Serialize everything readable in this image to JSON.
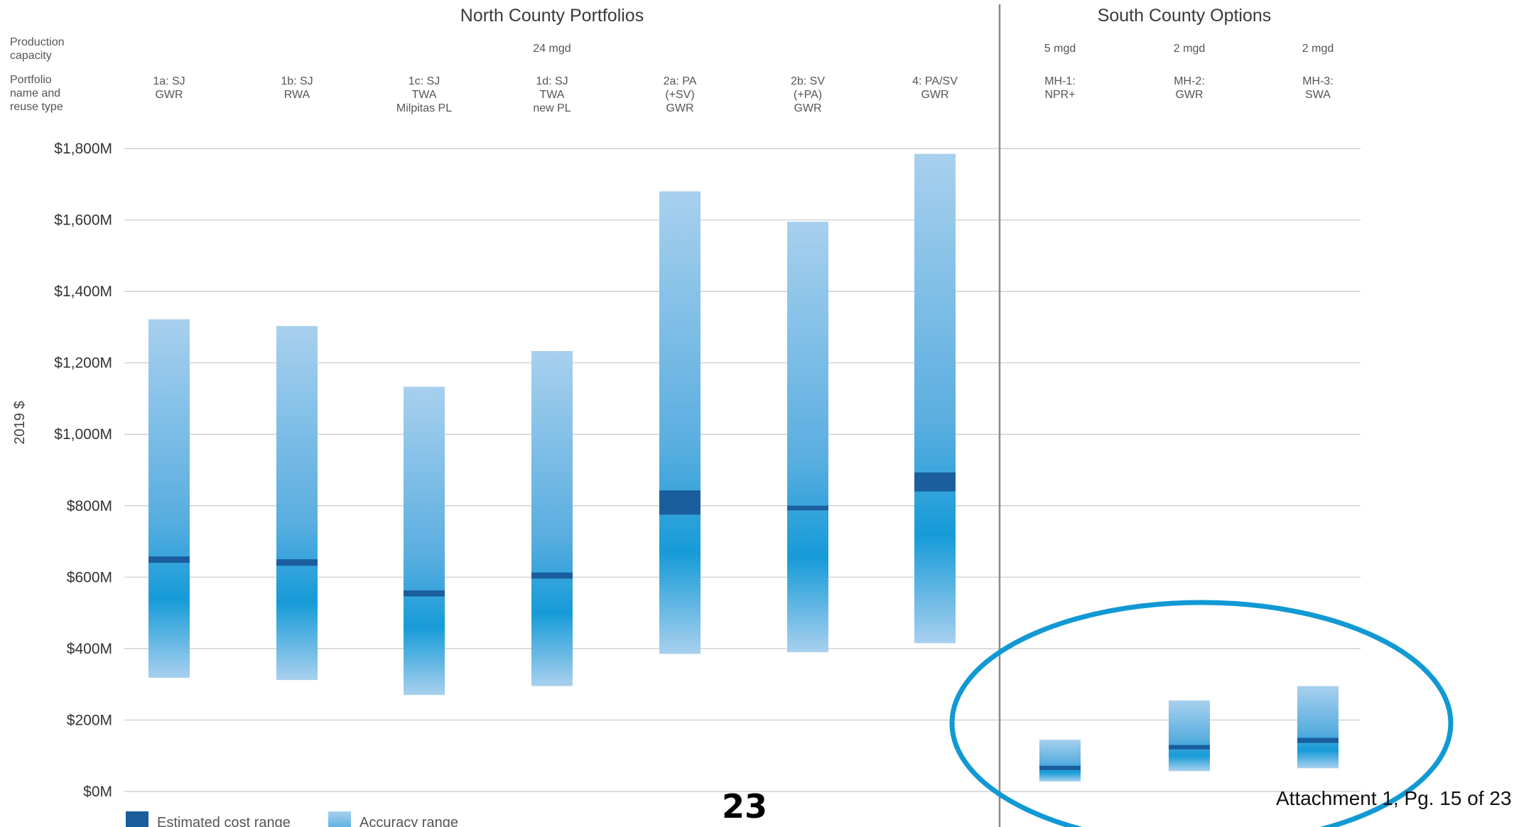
{
  "chart_data": {
    "type": "bar",
    "subtype": "floating range bars",
    "ylabel": "2019 $",
    "ylim": [
      0,
      1800
    ],
    "y_ticks": [
      "$0M",
      "$200M",
      "$400M",
      "$600M",
      "$800M",
      "$1,000M",
      "$1,200M",
      "$1,400M",
      "$1,600M",
      "$1,800M"
    ],
    "grid": true,
    "groups": [
      {
        "title": "North County Portfolios",
        "capacity": "24 mgd"
      },
      {
        "title": "South County Options"
      }
    ],
    "row_labels": {
      "capacity": [
        "Production",
        "capacity"
      ],
      "name": [
        "Portfolio",
        "name and",
        "reuse type"
      ]
    },
    "categories": [
      {
        "group": 0,
        "name": [
          "1a: SJ",
          "GWR"
        ],
        "accuracy_range": [
          318,
          1322
        ],
        "estimated_cost_range": [
          640,
          658
        ]
      },
      {
        "group": 0,
        "name": [
          "1b: SJ",
          "RWA"
        ],
        "accuracy_range": [
          312,
          1303
        ],
        "estimated_cost_range": [
          632,
          650
        ]
      },
      {
        "group": 0,
        "name": [
          "1c: SJ",
          "TWA",
          "Milpitas PL"
        ],
        "accuracy_range": [
          270,
          1133
        ],
        "estimated_cost_range": [
          546,
          563
        ]
      },
      {
        "group": 0,
        "name": [
          "1d: SJ",
          "TWA",
          "new PL"
        ],
        "accuracy_range": [
          295,
          1233
        ],
        "estimated_cost_range": [
          596,
          613
        ]
      },
      {
        "group": 0,
        "name": [
          "2a: PA",
          "(+SV)",
          "GWR"
        ],
        "accuracy_range": [
          385,
          1680
        ],
        "estimated_cost_range": [
          775,
          843
        ]
      },
      {
        "group": 0,
        "name": [
          "2b: SV",
          "(+PA)",
          "GWR"
        ],
        "accuracy_range": [
          390,
          1595
        ],
        "estimated_cost_range": [
          787,
          800
        ]
      },
      {
        "group": 0,
        "name": [
          "4: PA/SV",
          "GWR"
        ],
        "accuracy_range": [
          415,
          1785
        ],
        "estimated_cost_range": [
          840,
          893
        ]
      },
      {
        "group": 1,
        "capacity": "5 mgd",
        "name": [
          "MH-1:",
          "NPR+"
        ],
        "accuracy_range": [
          28,
          145
        ],
        "estimated_cost_range": [
          60,
          72
        ]
      },
      {
        "group": 1,
        "capacity": "2 mgd",
        "name": [
          "MH-2:",
          "GWR"
        ],
        "accuracy_range": [
          57,
          255
        ],
        "estimated_cost_range": [
          118,
          130
        ]
      },
      {
        "group": 1,
        "capacity": "2 mgd",
        "name": [
          "MH-3:",
          "SWA"
        ],
        "accuracy_range": [
          65,
          295
        ],
        "estimated_cost_range": [
          136,
          150
        ]
      }
    ],
    "legend": [
      {
        "label": "Estimated cost range",
        "color": "#1a5e9e"
      },
      {
        "label": "Accuracy range",
        "color": "#5aaee0"
      }
    ],
    "legend_placement": "bottom-left",
    "colors": {
      "accuracy_light": "#a8d0ee",
      "accuracy_mid": "#5aaee0",
      "accuracy_dark": "#169bd8",
      "estimate": "#1a5e9e",
      "highlight_ellipse": "#1199d4"
    },
    "annotation": "ellipse highlighting South County Options bars"
  },
  "footer": {
    "page_number": "23",
    "attachment": "Attachment 1, Pg. 15 of 23"
  }
}
